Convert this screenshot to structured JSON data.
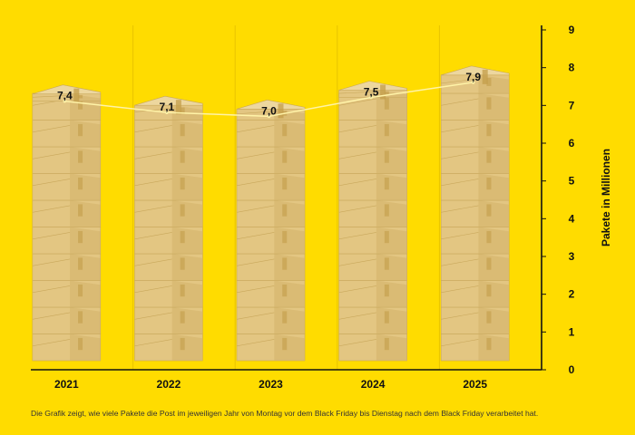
{
  "chart_data": {
    "type": "bar",
    "title": "",
    "categories": [
      "2021",
      "2022",
      "2023",
      "2024",
      "2025"
    ],
    "values": [
      7.4,
      7.1,
      7.0,
      7.5,
      7.9
    ],
    "value_labels": [
      "7,4",
      "7,1",
      "7,0",
      "7,5",
      "7,9"
    ],
    "xlabel": "",
    "ylabel": "Pakete in Millionen",
    "ylim": [
      0,
      9
    ],
    "yticks": [
      0,
      1,
      2,
      3,
      4,
      5,
      6,
      7,
      8,
      9
    ],
    "y_axis_side": "right",
    "bar_style": "stacked-parcel-boxes",
    "connecting_line": true
  },
  "caption": "Die Grafik zeigt, wie viele Pakete die Post im jeweiligen Jahr von Montag vor dem Black Friday bis Dienstag nach dem Black Friday verarbeitet hat.",
  "colors": {
    "background": "#FFDC00",
    "box_front": "#E3C682",
    "box_side": "#D4B36A",
    "box_top": "#EDD79E",
    "box_edge": "#C9A85C",
    "tape": "#C39D4A",
    "line": "#FFF3A8",
    "axis": "#111111",
    "grid": "#E8C400"
  }
}
